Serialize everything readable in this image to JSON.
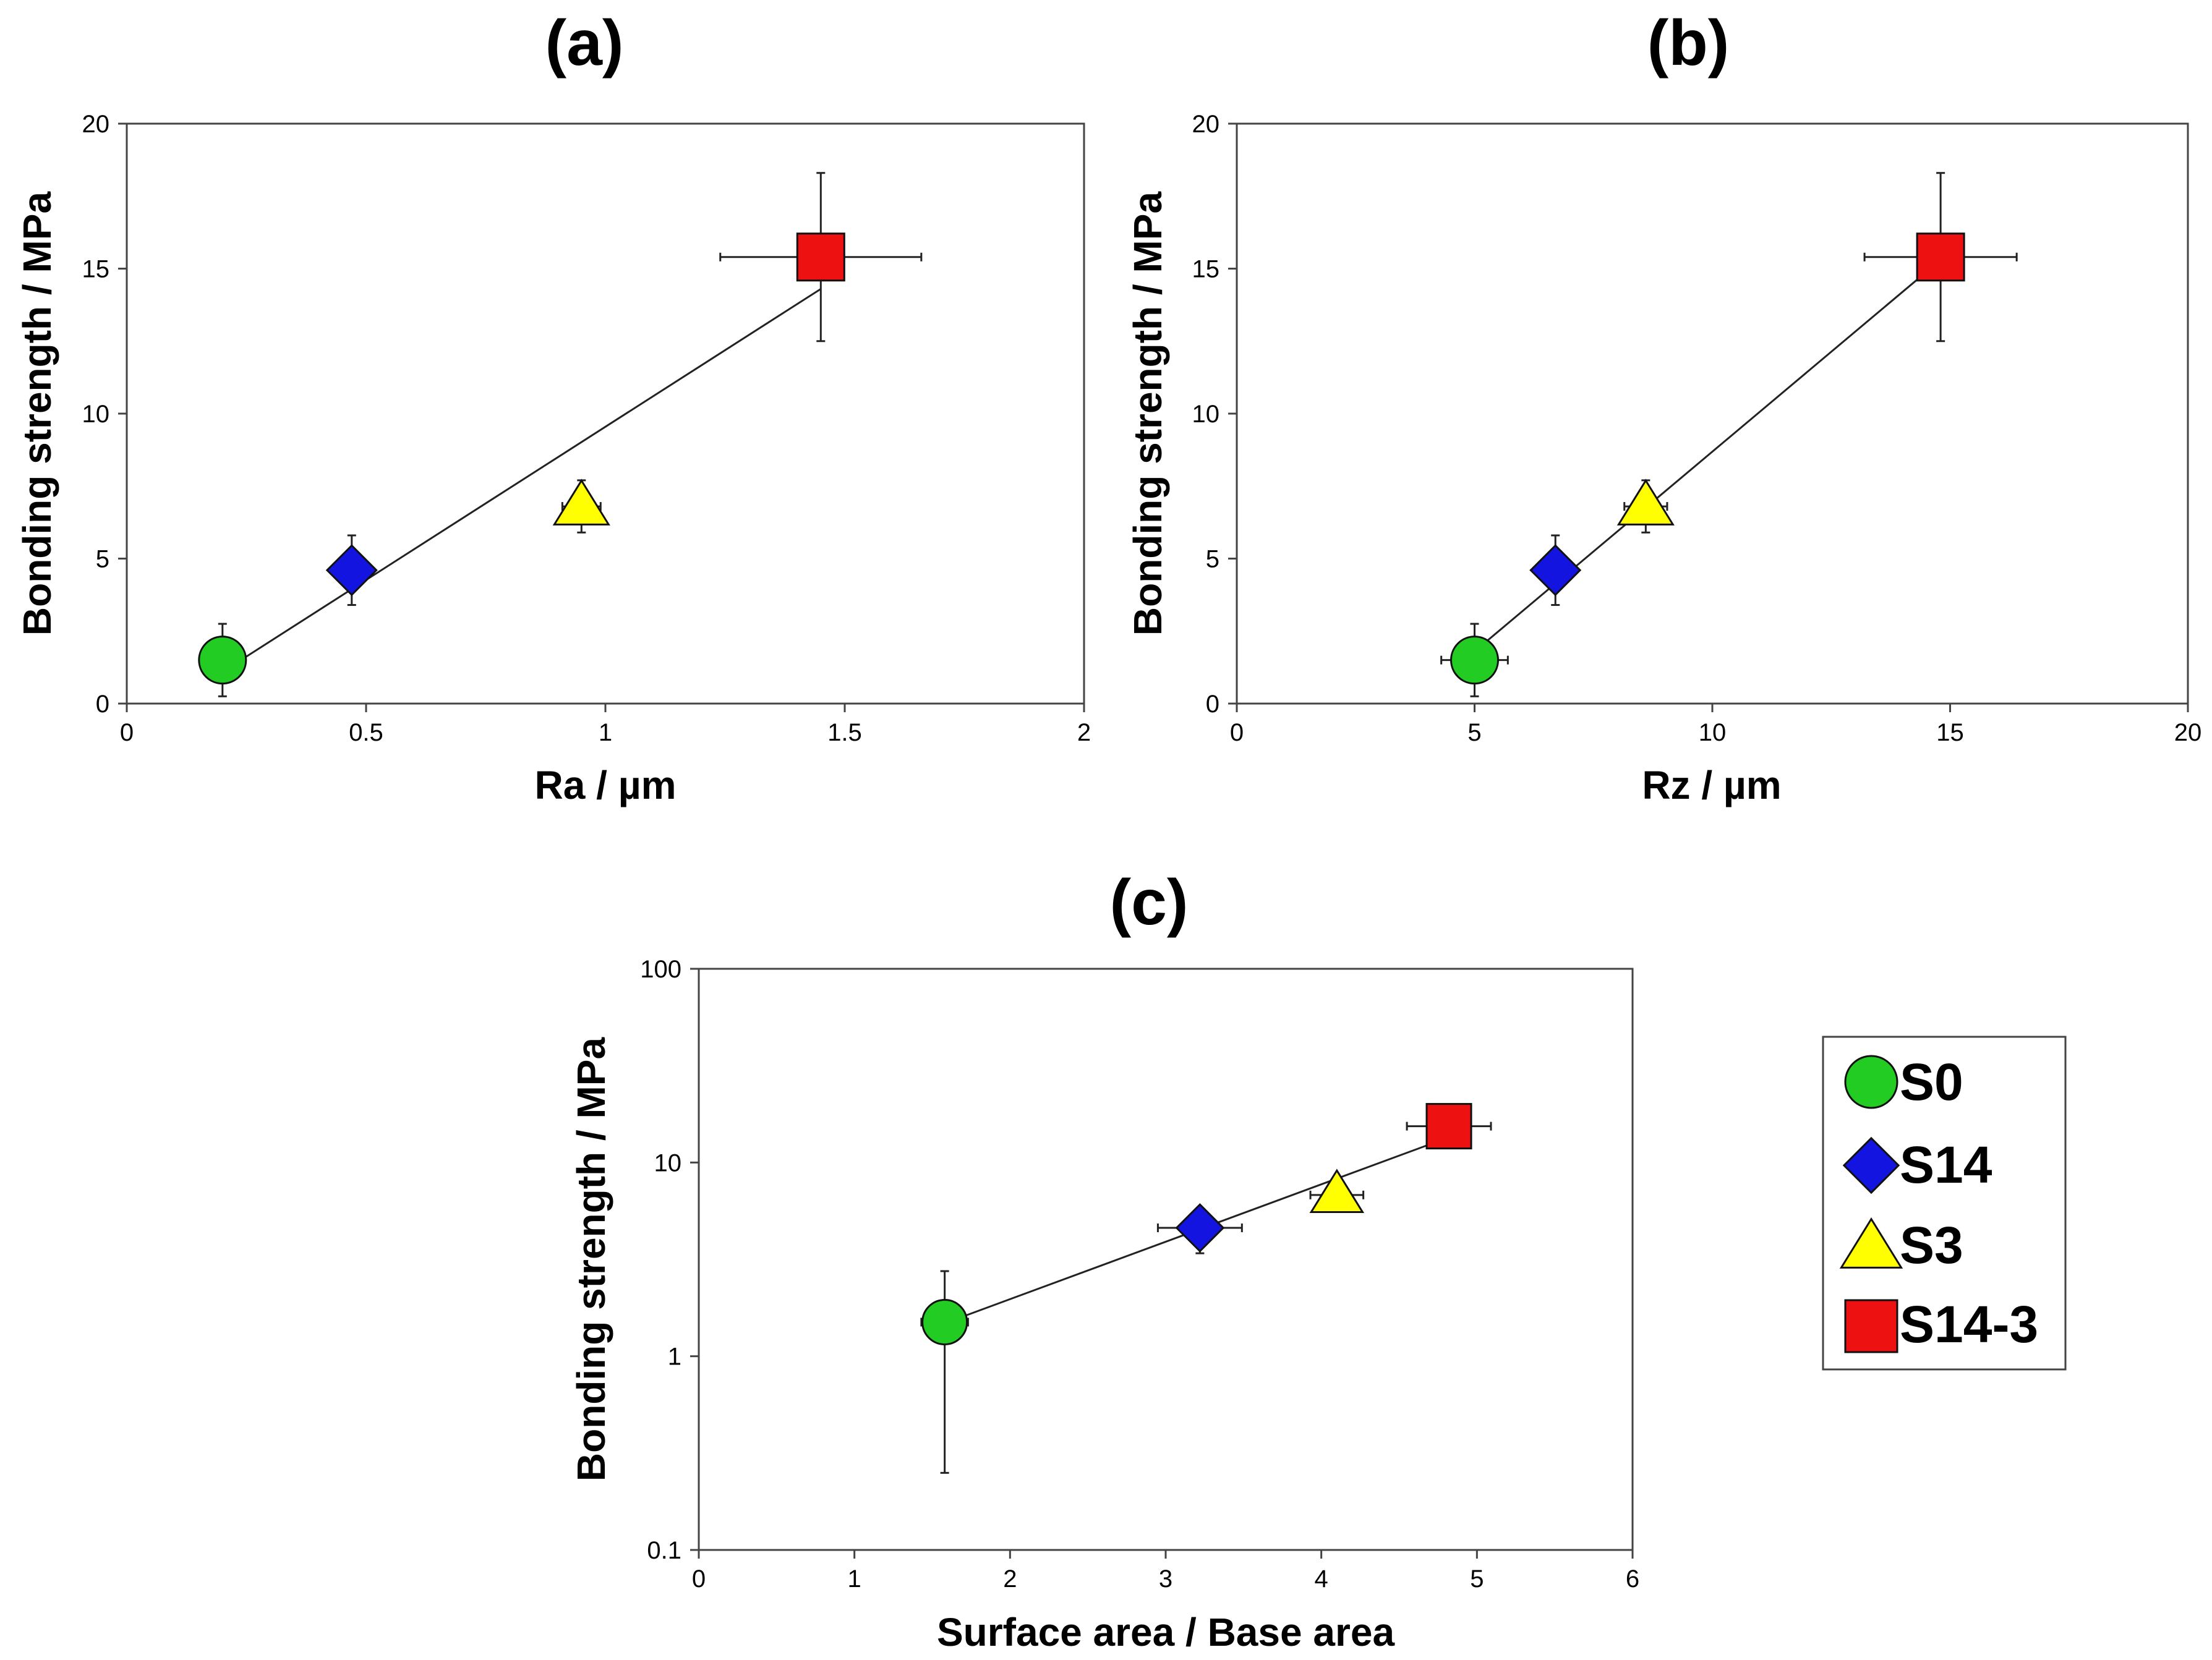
{
  "legend": {
    "items": [
      {
        "label": "S0",
        "marker": "circle",
        "color": "#22cc22"
      },
      {
        "label": "S14",
        "marker": "diamond",
        "color": "#1414e0"
      },
      {
        "label": "S3",
        "marker": "triangle",
        "color": "#ffff00"
      },
      {
        "label": "S14-3",
        "marker": "square",
        "color": "#ee1111"
      }
    ]
  },
  "chart_data": [
    {
      "panel": "a",
      "type": "scatter",
      "title": "(a)",
      "xlabel": "Ra / µm",
      "ylabel": "Bonding strength / MPa",
      "xlim": [
        0,
        2
      ],
      "ylim": [
        0,
        20
      ],
      "xscale": "linear",
      "yscale": "linear",
      "xticks": [
        0,
        0.5,
        1,
        1.5,
        2
      ],
      "xtick_labels": [
        "0",
        "0.5",
        "1",
        "1.5",
        "2"
      ],
      "yticks": [
        0,
        5,
        10,
        15,
        20
      ],
      "ytick_labels": [
        "0",
        "5",
        "10",
        "15",
        "20"
      ],
      "trend_line": {
        "x": [
          0.21,
          1.45
        ],
        "y": [
          1.2,
          14.3
        ]
      },
      "series": [
        {
          "name": "S0",
          "x": 0.2,
          "y": 1.5,
          "xerr": 0.0,
          "yerr": 1.25
        },
        {
          "name": "S14",
          "x": 0.47,
          "y": 4.6,
          "xerr": 0.0,
          "yerr": 1.2
        },
        {
          "name": "S3",
          "x": 0.95,
          "y": 6.8,
          "xerr": 0.04,
          "yerr": 0.9
        },
        {
          "name": "S14-3",
          "x": 1.45,
          "y": 15.4,
          "xerr": 0.21,
          "yerr": 2.9
        }
      ]
    },
    {
      "panel": "b",
      "type": "scatter",
      "title": "(b)",
      "xlabel": "Rz / µm",
      "ylabel": "Bonding strength / MPa",
      "xlim": [
        0,
        20
      ],
      "ylim": [
        0,
        20
      ],
      "xscale": "linear",
      "yscale": "linear",
      "xticks": [
        0,
        5,
        10,
        15,
        20
      ],
      "xtick_labels": [
        "0",
        "5",
        "10",
        "15",
        "20"
      ],
      "yticks": [
        0,
        5,
        10,
        15,
        20
      ],
      "ytick_labels": [
        "0",
        "5",
        "10",
        "15",
        "20"
      ],
      "trend_line": {
        "x": [
          5.0,
          14.8
        ],
        "y": [
          1.8,
          15.3
        ]
      },
      "series": [
        {
          "name": "S0",
          "x": 5.0,
          "y": 1.5,
          "xerr": 0.7,
          "yerr": 1.25
        },
        {
          "name": "S14",
          "x": 6.7,
          "y": 4.6,
          "xerr": 0.1,
          "yerr": 1.2
        },
        {
          "name": "S3",
          "x": 8.6,
          "y": 6.8,
          "xerr": 0.45,
          "yerr": 0.9
        },
        {
          "name": "S14-3",
          "x": 14.8,
          "y": 15.4,
          "xerr": 1.6,
          "yerr": 2.9
        }
      ]
    },
    {
      "panel": "c",
      "type": "scatter",
      "title": "(c)",
      "xlabel": "Surface area / Base area",
      "ylabel": "Bonding strength / MPa",
      "xlim": [
        0,
        6
      ],
      "ylim": [
        0.1,
        100
      ],
      "xscale": "linear",
      "yscale": "log",
      "xticks": [
        0,
        1,
        2,
        3,
        4,
        5,
        6
      ],
      "xtick_labels": [
        "0",
        "1",
        "2",
        "3",
        "4",
        "5",
        "6"
      ],
      "yticks": [
        0.1,
        1,
        10,
        100
      ],
      "ytick_labels": [
        "0.1",
        "1",
        "10",
        "100"
      ],
      "trend_line": {
        "x": [
          1.6,
          4.82
        ],
        "y": [
          1.5,
          13.5
        ]
      },
      "series": [
        {
          "name": "S0",
          "x": 1.58,
          "y": 1.5,
          "xerr": 0.15,
          "ylo": 0.25,
          "yhi": 2.75
        },
        {
          "name": "S14",
          "x": 3.22,
          "y": 4.6,
          "xerr": 0.27,
          "ylo": 3.4,
          "yhi": 5.8
        },
        {
          "name": "S3",
          "x": 4.1,
          "y": 6.8,
          "xerr": 0.17,
          "ylo": 5.9,
          "yhi": 7.7
        },
        {
          "name": "S14-3",
          "x": 4.82,
          "y": 15.4,
          "xerr": 0.27,
          "ylo": 12.5,
          "yhi": 18.3
        }
      ]
    }
  ]
}
